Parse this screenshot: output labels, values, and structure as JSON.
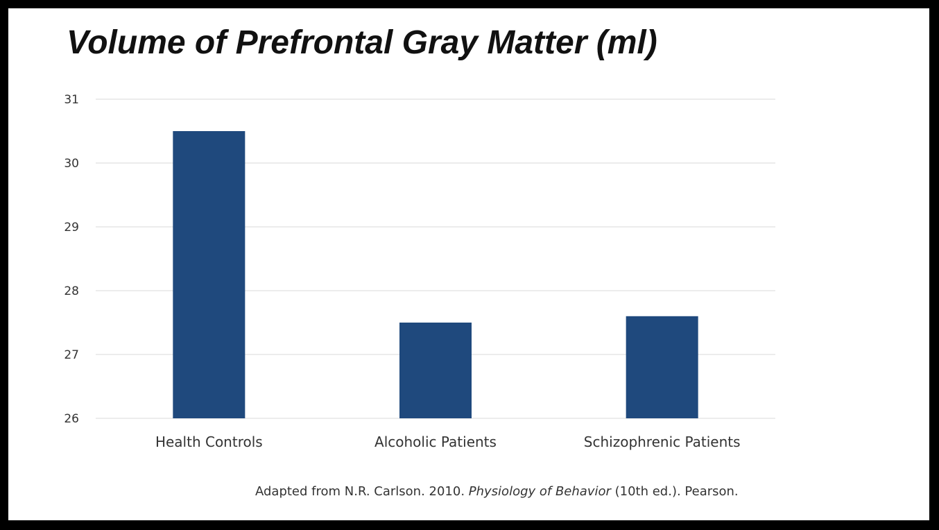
{
  "chart_data": {
    "type": "bar",
    "title": "Volume of Prefrontal Gray Matter (ml)",
    "categories": [
      "Health Controls",
      "Alcoholic Patients",
      "Schizophrenic Patients"
    ],
    "values": [
      30.5,
      27.5,
      27.6
    ],
    "ylim": [
      26,
      31
    ],
    "yticks": [
      26,
      27,
      28,
      29,
      30,
      31
    ],
    "xlabel": "",
    "ylabel": "",
    "grid": true,
    "bar_color": "#1f497d",
    "grid_color": "#e6e6e6"
  },
  "caption": {
    "prefix": "Adapted from N.R. Carlson. 2010. ",
    "book_title": "Physiology of Behavior",
    "suffix": " (10th ed.). Pearson."
  }
}
